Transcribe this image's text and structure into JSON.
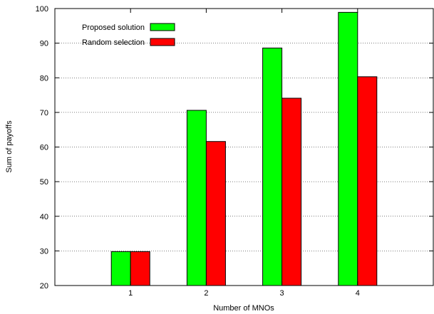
{
  "chart_data": {
    "type": "bar",
    "xlabel": "Number of MNOs",
    "ylabel": "Sum of payoffs",
    "categories": [
      "1",
      "2",
      "3",
      "4"
    ],
    "series": [
      {
        "name": "Proposed solution",
        "color": "#00ff00",
        "values": [
          29.8,
          70.6,
          88.6,
          98.9
        ]
      },
      {
        "name": "Random selection",
        "color": "#ff0000",
        "values": [
          29.8,
          61.6,
          74.1,
          80.3
        ]
      }
    ],
    "ylim": [
      20,
      100
    ],
    "yticks": [
      20,
      30,
      40,
      50,
      60,
      70,
      80,
      90,
      100
    ],
    "xlim": [
      0,
      5
    ],
    "grid": "horizontal-dotted",
    "legend_position": "top-left"
  }
}
